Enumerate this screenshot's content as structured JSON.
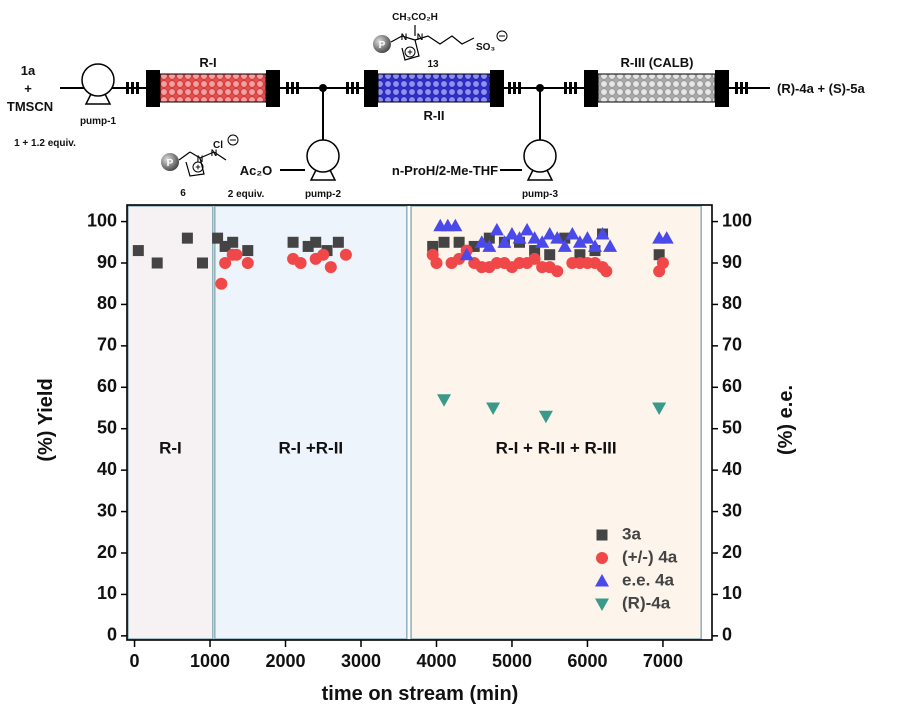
{
  "scheme": {
    "reactant": "1a",
    "plus": "+",
    "reagent": "TMSCN",
    "pump1": "pump-1",
    "equiv1": "1 + 1.2 equiv.",
    "reactor1": "R-I",
    "catalyst1": "6",
    "anion1": "Cl",
    "p_label": "P",
    "n_label": "N",
    "acyl": "Ac₂O",
    "equiv2": "2 equiv.",
    "pump2": "pump-2",
    "reactor2": "R-II",
    "side_chain": "CH₃CO₂H",
    "catalyst2": "13",
    "anion2": "SO₃",
    "solvent": "n-ProH/2-Me-THF",
    "pump3": "pump-3",
    "reactor3": "R-III (CALB)",
    "product": "(R)-4a + (S)-5a"
  },
  "chart_data": {
    "type": "scatter",
    "x_label": "time on stream (min)",
    "y_label": "(%) Yield",
    "y2_label": "(%) e.e.",
    "xlim": [
      -100,
      7650
    ],
    "xticks": [
      0,
      1000,
      2000,
      3000,
      4000,
      5000,
      6000,
      7000
    ],
    "ylim": [
      -1,
      104
    ],
    "yticks": [
      0,
      10,
      20,
      30,
      40,
      50,
      60,
      70,
      80,
      90,
      100
    ],
    "y2lim": [
      -1,
      104
    ],
    "y2ticks": [
      0,
      10,
      20,
      30,
      40,
      50,
      60,
      70,
      80,
      90,
      100
    ],
    "legend": "lower right",
    "regions": [
      {
        "label": "R-I",
        "start": -100,
        "end": 1050,
        "color": "#f6f1f3"
      },
      {
        "label": "R-I +R-II",
        "start": 1050,
        "end": 3620,
        "color": "#eef4fc"
      },
      {
        "label": "R-I + R-II + R-III",
        "start": 3650,
        "end": 7520,
        "color": "#fdf4ec"
      }
    ],
    "series": [
      {
        "name": "3a",
        "color": "#444444",
        "marker": "square",
        "x": [
          50,
          300,
          700,
          900,
          1100,
          1200,
          1300,
          1500,
          2100,
          2300,
          2400,
          2550,
          2700,
          3950,
          4100,
          4300,
          4500,
          4700,
          4900,
          5100,
          5300,
          5500,
          5700,
          5900,
          6100,
          6200,
          6950
        ],
        "values": [
          93,
          90,
          96,
          90,
          96,
          94,
          95,
          93,
          95,
          94,
          95,
          93,
          95,
          94,
          95,
          95,
          94,
          96,
          95,
          95,
          93,
          92,
          96,
          92,
          93,
          97,
          92
        ]
      },
      {
        "name": "(+/-) 4a",
        "color": "#f04848",
        "marker": "circle",
        "x": [
          1150,
          1200,
          1300,
          1350,
          1500,
          2100,
          2200,
          2400,
          2500,
          2600,
          2800,
          3950,
          4000,
          4200,
          4300,
          4400,
          4500,
          4600,
          4700,
          4800,
          4900,
          5000,
          5100,
          5200,
          5300,
          5400,
          5500,
          5600,
          5800,
          5900,
          6000,
          6100,
          6200,
          6250,
          6950,
          7000
        ],
        "values": [
          85,
          90,
          92,
          92,
          90,
          91,
          90,
          91,
          92,
          89,
          92,
          92,
          90,
          90,
          91,
          93,
          90,
          89,
          89,
          90,
          90,
          89,
          90,
          90,
          91,
          89,
          89,
          88,
          90,
          90,
          90,
          90,
          89,
          88,
          88,
          90
        ]
      },
      {
        "name": "e.e. 4a",
        "color": "#4a4aea",
        "marker": "triangle-up",
        "axis": "y2",
        "x": [
          4050,
          4150,
          4250,
          4400,
          4600,
          4700,
          4800,
          4900,
          5000,
          5100,
          5200,
          5300,
          5400,
          5500,
          5600,
          5700,
          5800,
          5900,
          6000,
          6100,
          6200,
          6300,
          6950,
          7050
        ],
        "values": [
          99,
          99,
          99,
          92,
          95,
          94,
          98,
          95,
          97,
          96,
          98,
          96,
          95,
          97,
          96,
          94,
          97,
          95,
          96,
          94,
          97,
          94,
          96,
          96
        ]
      },
      {
        "name": "(R)-4a",
        "color": "#3a9a8a",
        "marker": "triangle-down",
        "axis": "y2",
        "x": [
          4100,
          4750,
          5450,
          6950
        ],
        "values": [
          57,
          55,
          53,
          55
        ]
      }
    ]
  }
}
